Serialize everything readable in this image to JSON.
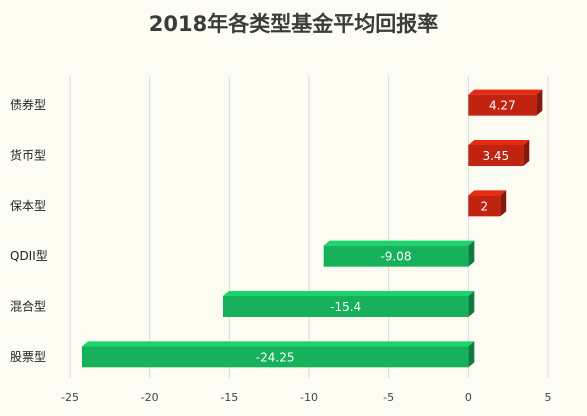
{
  "chart_data": {
    "type": "bar",
    "orientation": "horizontal",
    "style": "3d",
    "title": "2018年各类型基金平均回报率",
    "categories": [
      "债券型",
      "货币型",
      "保本型",
      "QDII型",
      "混合型",
      "股票型"
    ],
    "values": [
      4.27,
      3.45,
      2,
      -9.08,
      -15.4,
      -24.25
    ],
    "value_labels": [
      "4.27",
      "3.45",
      "2",
      "-9.08",
      "-15.4",
      "-24.25"
    ],
    "xlim": [
      -25,
      5
    ],
    "xticks": [
      -25,
      -20,
      -15,
      -10,
      -5,
      0,
      5
    ],
    "xtick_labels": [
      "-25",
      "-20",
      "-15",
      "-10",
      "-5",
      "0",
      "5"
    ],
    "grid": true,
    "legend": "none",
    "colors": {
      "positive": "#c0230f",
      "negative": "#16b15a",
      "background": "#fdfcf3",
      "grid": "#d9d9d9"
    }
  }
}
